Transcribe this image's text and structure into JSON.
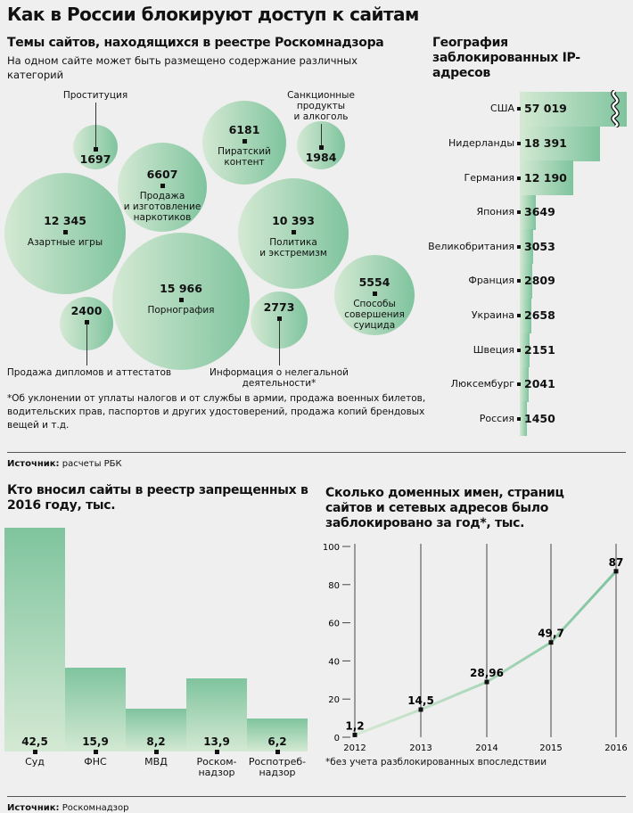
{
  "title": "Как в России блокируют доступ к сайтам",
  "colors": {
    "accent": "#7fc49e",
    "accent_light": "#d4e9d3",
    "background": "#efefef"
  },
  "topics": {
    "title": "Темы сайтов, находящихся в реестре Роскомнадзора",
    "subtitle": "На одном сайте может быть размещено содержание различных категорий",
    "footnote": "*Об уклонении от уплаты налогов и от службы в армии, продажа военных билетов, водительских прав, паспортов и других удостоверений, продажа копий брендовых вещей и т.д.",
    "source_label": "Источник:",
    "source": "расчеты РБК"
  },
  "ip": {
    "title": "География заблокированных IP-адресов"
  },
  "registrars": {
    "title": "Кто вносил сайты в реестр запрещенных в 2016 году, тыс.",
    "source_label": "Источник:",
    "source": "Роскомнадзор"
  },
  "domains": {
    "title": "Сколько доменных имен, страниц сайтов и сетевых адресов было заблокировано за год*, тыс.",
    "footnote": "*без учета разблокированных впоследствии"
  },
  "chart_data": [
    {
      "type": "bubble",
      "title": "Темы сайтов, находящихся в реестре Роскомнадзора",
      "items": [
        {
          "label": "Проституция",
          "value": 1697,
          "display": "1697"
        },
        {
          "label": "Продажа и изготовление наркотиков",
          "value": 6607,
          "display": "6607"
        },
        {
          "label": "Пиратский контент",
          "value": 6181,
          "display": "6181"
        },
        {
          "label": "Санкционные продукты и алкоголь",
          "value": 1984,
          "display": "1984"
        },
        {
          "label": "Азартные игры",
          "value": 12345,
          "display": "12 345"
        },
        {
          "label": "Политика и экстремизм",
          "value": 10393,
          "display": "10 393"
        },
        {
          "label": "Порнография",
          "value": 15966,
          "display": "15 966"
        },
        {
          "label": "Продажа дипломов и аттестатов",
          "value": 2400,
          "display": "2400"
        },
        {
          "label": "Информация о нелегальной деятельности*",
          "value": 2773,
          "display": "2773"
        },
        {
          "label": "Способы совершения суицида",
          "value": 5554,
          "display": "5554"
        }
      ]
    },
    {
      "type": "bar",
      "orientation": "horizontal",
      "title": "География заблокированных IP-адресов",
      "categories": [
        "США",
        "Нидерланды",
        "Германия",
        "Япония",
        "Великобритания",
        "Франция",
        "Украина",
        "Швеция",
        "Люксембург",
        "Россия"
      ],
      "values": [
        57019,
        18391,
        12190,
        3649,
        3053,
        2809,
        2658,
        2151,
        2041,
        1450
      ],
      "display": [
        "57 019",
        "18 391",
        "12 190",
        "3649",
        "3053",
        "2809",
        "2658",
        "2151",
        "2041",
        "1450"
      ],
      "axis_break": "США"
    },
    {
      "type": "bar",
      "title": "Кто вносил сайты в реестр запрещенных в 2016 году, тыс.",
      "categories": [
        "Суд",
        "ФНС",
        "МВД",
        "Роском-надзор",
        "Роспотреб-надзор"
      ],
      "values": [
        42.5,
        15.9,
        8.2,
        13.9,
        6.2
      ],
      "display": [
        "42,5",
        "15,9",
        "8,2",
        "13,9",
        "6,2"
      ]
    },
    {
      "type": "line",
      "title": "Сколько доменных имен, страниц сайтов и сетевых адресов было заблокировано за год*, тыс.",
      "x": [
        "2012",
        "2013",
        "2014",
        "2015",
        "2016"
      ],
      "values": [
        1.2,
        14.5,
        28.96,
        49.7,
        87
      ],
      "display": [
        "1,2",
        "14,5",
        "28,96",
        "49,7",
        "87"
      ],
      "ylim": [
        0,
        100
      ],
      "yticks": [
        "0",
        "20",
        "40",
        "60",
        "80",
        "100"
      ],
      "grid": "vertical"
    }
  ]
}
